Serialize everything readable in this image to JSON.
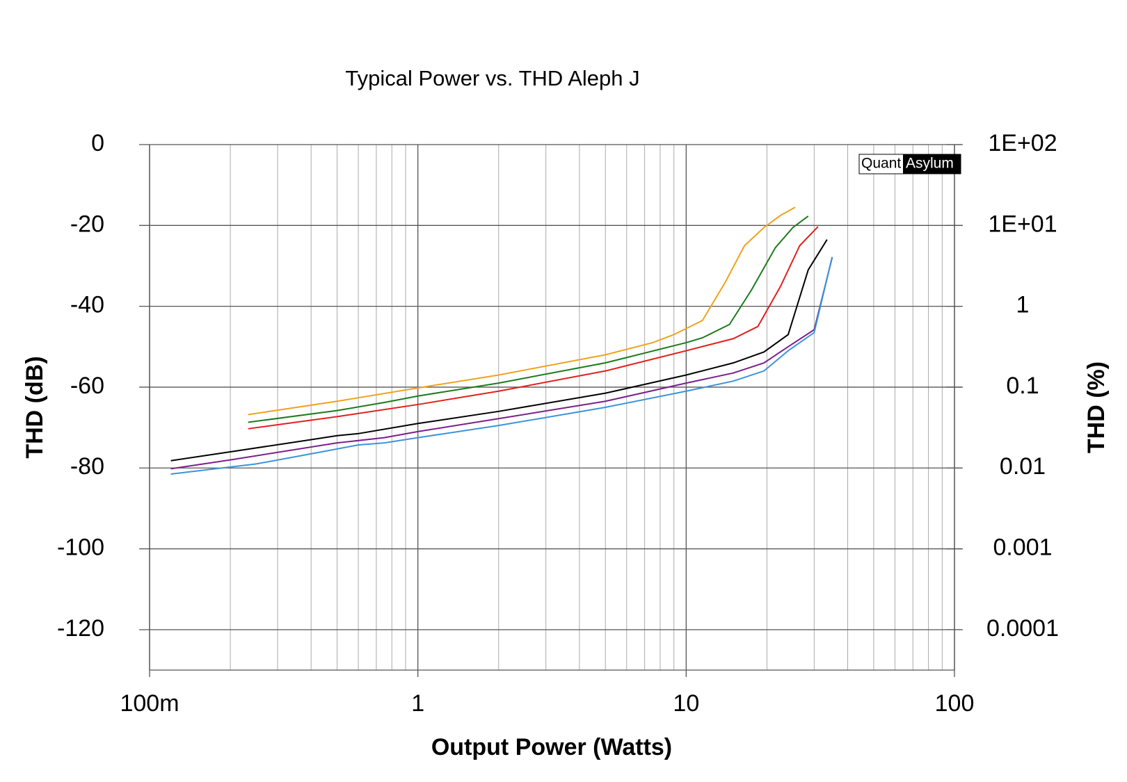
{
  "chart_data": {
    "type": "line",
    "title": "Typical Power vs. THD Aleph J",
    "xlabel": "Output Power (Watts)",
    "ylabel": "THD (dB)",
    "y2label": "THD (%)",
    "xscale": "log",
    "y2scale": "log",
    "grid": true,
    "xlim": [
      0.1,
      100
    ],
    "xticks": [
      {
        "value": 0.1,
        "label": "100m"
      },
      1,
      10,
      100
    ],
    "xminorticks": [
      0.2,
      0.3,
      0.4,
      0.5,
      0.6,
      0.7,
      0.8,
      0.9,
      2,
      3,
      4,
      5,
      6,
      7,
      8,
      9,
      20,
      30,
      40,
      50,
      60,
      70,
      80,
      90
    ],
    "ylim": [
      -130,
      0
    ],
    "yticks": [
      0,
      -20,
      -40,
      -60,
      -80,
      -100,
      -120
    ],
    "y2lim": [
      3.16228e-05,
      100
    ],
    "y2ticks": [
      {
        "value": 100,
        "label": "1E+02"
      },
      {
        "value": 10,
        "label": "1E+01"
      },
      1,
      0.1,
      0.01,
      0.001,
      0.0001
    ],
    "logo": {
      "left": "Quant",
      "right": "Asylum"
    },
    "series": [
      {
        "color": "#f0a21e",
        "x": [
          0.233,
          0.5,
          1,
          2,
          5,
          7.5,
          9,
          10,
          11.5,
          14,
          16.5,
          19.5,
          22.5,
          25.5
        ],
        "values": [
          -66.8,
          -63.5,
          -60.2,
          -57,
          -52,
          -49,
          -47,
          -45.5,
          -43.5,
          -34,
          -25,
          -20.5,
          -17.5,
          -15.5
        ]
      },
      {
        "color": "#1c7a1c",
        "x": [
          0.233,
          0.5,
          0.75,
          1,
          2,
          5,
          10,
          11.5,
          14.5,
          17.5,
          21.5,
          25,
          28.5
        ],
        "values": [
          -68.7,
          -65.8,
          -63.8,
          -62.2,
          -59,
          -54,
          -49,
          -47.8,
          -44.5,
          -36,
          -25.5,
          -20.5,
          -17.7
        ]
      },
      {
        "color": "#e0201c",
        "x": [
          0.233,
          0.5,
          1,
          2,
          5,
          10,
          15,
          18.5,
          22.5,
          26.5,
          31
        ],
        "values": [
          -70.3,
          -67.3,
          -64.3,
          -61,
          -56,
          -51,
          -48,
          -45,
          -35,
          -25,
          -20.3
        ]
      },
      {
        "color": "#000000",
        "x": [
          0.12,
          0.2,
          0.4,
          0.5,
          0.6,
          1,
          2,
          5,
          10,
          15,
          19.5,
          24,
          28.5,
          33.5
        ],
        "values": [
          -78.2,
          -76,
          -73,
          -72,
          -71.5,
          -69,
          -66,
          -61.5,
          -57,
          -54,
          -51.3,
          -47,
          -31,
          -23.5
        ]
      },
      {
        "color": "#7a1f8c",
        "x": [
          0.12,
          0.2,
          0.5,
          0.75,
          1,
          2,
          5,
          10,
          15,
          19.5,
          24,
          30,
          35
        ],
        "values": [
          -80.2,
          -78,
          -73.8,
          -72.5,
          -71,
          -67.8,
          -63.5,
          -59,
          -56.5,
          -54,
          -50,
          -45.8,
          -28
        ]
      },
      {
        "color": "#3a93dc",
        "x": [
          0.12,
          0.25,
          0.4,
          0.6,
          0.75,
          1,
          2,
          5,
          10,
          15,
          19.5,
          24,
          30,
          35
        ],
        "values": [
          -81.5,
          -79,
          -76.5,
          -74.3,
          -73.8,
          -72.5,
          -69.5,
          -65,
          -61,
          -58.5,
          -56,
          -51,
          -46.5,
          -27.8
        ]
      }
    ]
  }
}
